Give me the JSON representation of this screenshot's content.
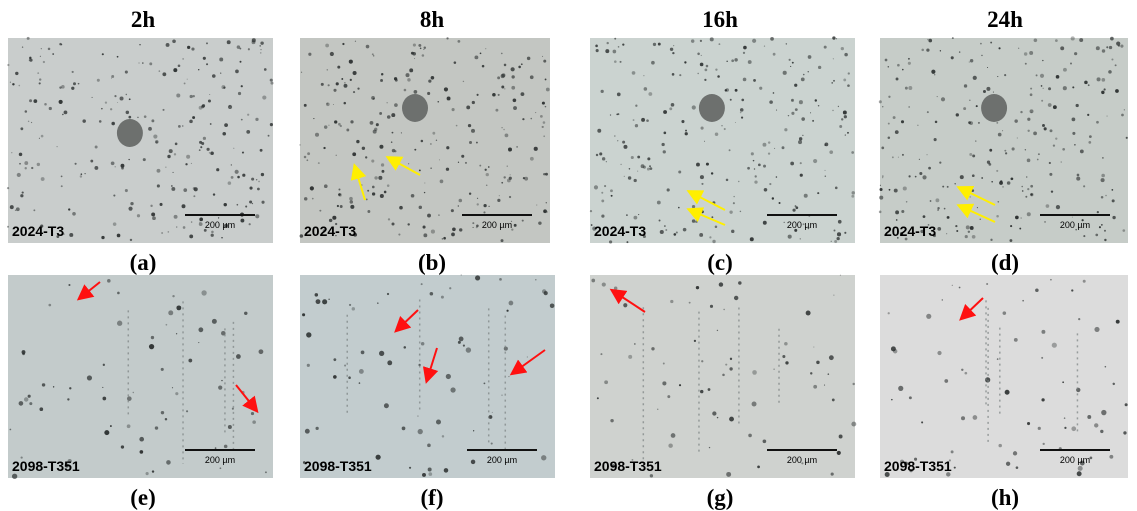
{
  "columns": [
    "2h",
    "8h",
    "16h",
    "24h"
  ],
  "panels": [
    {
      "material": "2024-T3",
      "scale": "200 µm",
      "caption": "(a)"
    },
    {
      "material": "2024-T3",
      "scale": "200 µm",
      "caption": "(b)"
    },
    {
      "material": "2024-T3",
      "scale": "200 µm",
      "caption": "(c)"
    },
    {
      "material": "2024-T3",
      "scale": "200 µm",
      "caption": "(d)"
    },
    {
      "material": "2098-T351",
      "scale": "200 µm",
      "caption": "(e)"
    },
    {
      "material": "2098-T351",
      "scale": "200 µm",
      "caption": "(f)"
    },
    {
      "material": "2098-T351",
      "scale": "200 µm",
      "caption": "(g)"
    },
    {
      "material": "2098-T351",
      "scale": "200 µm",
      "caption": "(h)"
    }
  ]
}
